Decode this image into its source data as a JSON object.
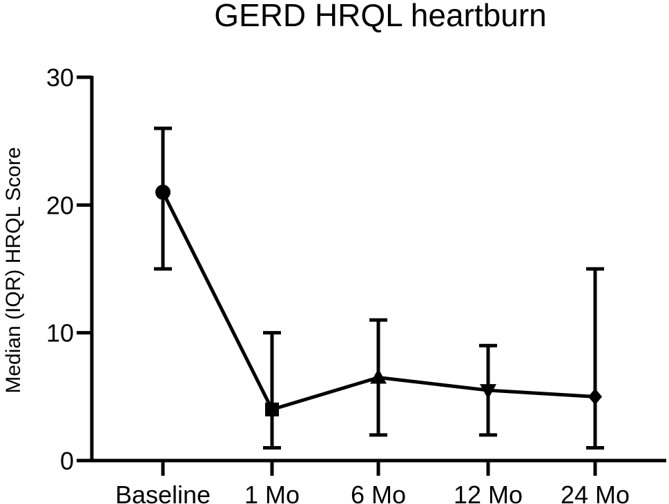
{
  "chart_data": {
    "type": "line",
    "title": "GERD HRQL heartburn",
    "xlabel": "",
    "ylabel": "Median (IQR) HRQL Score",
    "categories": [
      "Baseline",
      "1 Mo",
      "6 Mo",
      "12 Mo",
      "24 Mo"
    ],
    "ylim": [
      0,
      30
    ],
    "yticks": [
      0,
      10,
      20,
      30
    ],
    "ytick_labels": [
      "0",
      "10",
      "20",
      "30"
    ],
    "grid": false,
    "legend": "none",
    "series": [
      {
        "values": [
          21,
          4,
          6.5,
          5.5,
          5
        ],
        "lower": [
          15,
          1,
          2,
          2,
          1
        ],
        "upper": [
          26,
          10,
          11,
          9,
          15
        ],
        "markers": [
          "circle",
          "square",
          "triangle-up",
          "triangle-down",
          "diamond"
        ],
        "color": "#000000"
      }
    ]
  }
}
